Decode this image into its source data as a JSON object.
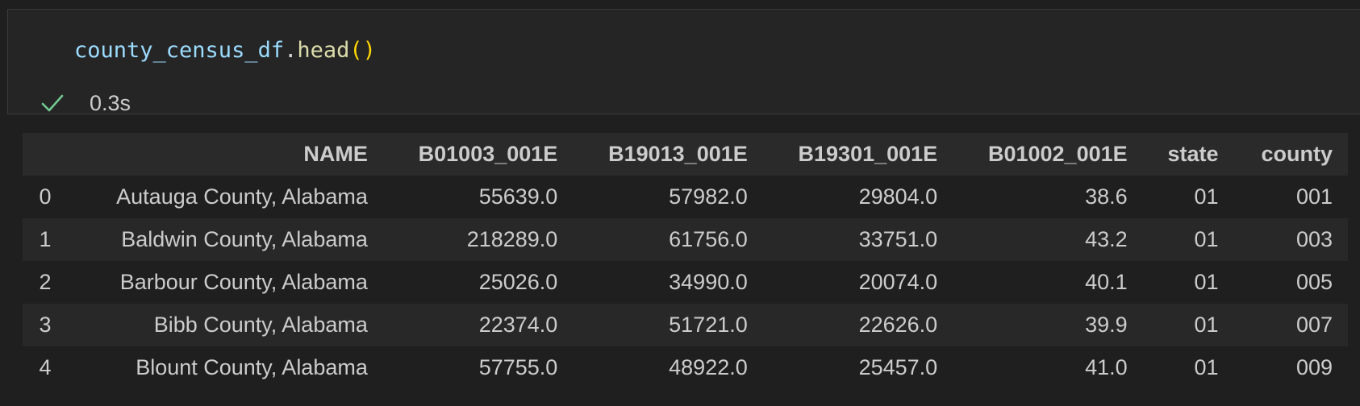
{
  "cell": {
    "code": {
      "variable": "county_census_df",
      "dot": ".",
      "function": "head",
      "parens": "()"
    },
    "status": {
      "icon": "check-icon",
      "icon_color": "#73c991",
      "duration": "0.3s"
    }
  },
  "dataframe": {
    "columns": [
      "NAME",
      "B01003_001E",
      "B19013_001E",
      "B19301_001E",
      "B01002_001E",
      "state",
      "county"
    ],
    "rows": [
      {
        "index": "0",
        "cells": [
          "Autauga County, Alabama",
          "55639.0",
          "57982.0",
          "29804.0",
          "38.6",
          "01",
          "001"
        ]
      },
      {
        "index": "1",
        "cells": [
          "Baldwin County, Alabama",
          "218289.0",
          "61756.0",
          "33751.0",
          "43.2",
          "01",
          "003"
        ]
      },
      {
        "index": "2",
        "cells": [
          "Barbour County, Alabama",
          "25026.0",
          "34990.0",
          "20074.0",
          "40.1",
          "01",
          "005"
        ]
      },
      {
        "index": "3",
        "cells": [
          "Bibb County, Alabama",
          "22374.0",
          "51721.0",
          "22626.0",
          "39.9",
          "01",
          "007"
        ]
      },
      {
        "index": "4",
        "cells": [
          "Blount County, Alabama",
          "57755.0",
          "48922.0",
          "25457.0",
          "41.0",
          "01",
          "009"
        ]
      }
    ]
  }
}
